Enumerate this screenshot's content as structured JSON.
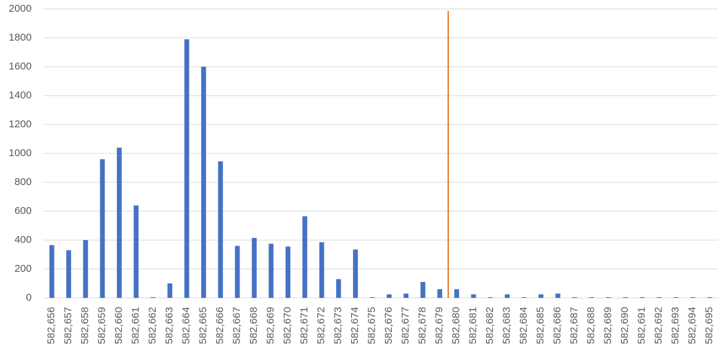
{
  "chart_data": {
    "type": "bar",
    "categories": [
      "582,656",
      "582,657",
      "582,658",
      "582,659",
      "582,660",
      "582,661",
      "582,662",
      "582,663",
      "582,664",
      "582,665",
      "582,666",
      "582,667",
      "582,668",
      "582,669",
      "582,670",
      "582,671",
      "582,672",
      "582,673",
      "582,674",
      "582,675",
      "582,676",
      "582,677",
      "582,678",
      "582,679",
      "582,680",
      "582,681",
      "582,682",
      "582,683",
      "582,684",
      "582,685",
      "582,686",
      "582,687",
      "582,688",
      "582,689",
      "582,690",
      "582,691",
      "582,692",
      "582,693",
      "582,694",
      "582,695"
    ],
    "values": [
      365,
      330,
      400,
      960,
      1040,
      640,
      5,
      100,
      1790,
      1600,
      945,
      360,
      415,
      375,
      355,
      565,
      385,
      130,
      335,
      5,
      25,
      30,
      110,
      60,
      60,
      25,
      5,
      25,
      5,
      25,
      30,
      5,
      5,
      5,
      5,
      5,
      5,
      5,
      5,
      5
    ],
    "color": "#4472c4",
    "ylim": [
      0,
      2000
    ],
    "yticks": [
      0,
      200,
      400,
      600,
      800,
      1000,
      1200,
      1400,
      1600,
      1800,
      2000
    ],
    "grid": true
  }
}
